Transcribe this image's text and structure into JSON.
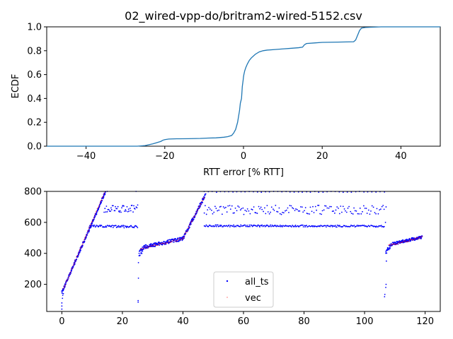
{
  "chart_data": [
    {
      "type": "line",
      "title": "02_wired-vpp-do/britram2-wired-5152.csv",
      "xlabel": "RTT error [% RTT]",
      "ylabel": "ECDF",
      "xlim": [
        -50,
        50
      ],
      "ylim": [
        0,
        1.0
      ],
      "xticks": [
        -40,
        -20,
        0,
        20,
        40
      ],
      "xtick_labels": [
        "−40",
        "−20",
        "0",
        "20",
        "40"
      ],
      "yticks": [
        0.0,
        0.2,
        0.4,
        0.6,
        0.8,
        1.0
      ],
      "ytick_labels": [
        "0.0",
        "0.2",
        "0.4",
        "0.6",
        "0.8",
        "1.0"
      ],
      "grid": false,
      "series": [
        {
          "color": "#1f77b4",
          "x": [
            -50,
            -27,
            -25,
            -23,
            -21,
            -20.5,
            -20,
            -19,
            -17,
            -14,
            -11,
            -9,
            -7,
            -5,
            -4,
            -3,
            -2.5,
            -2,
            -1.5,
            -1,
            -0.8,
            -0.5,
            -0.3,
            -0.1,
            0,
            0.1,
            0.3,
            0.6,
            1,
            1.5,
            2,
            3,
            4,
            5,
            6,
            8,
            10,
            12,
            14,
            15,
            15.5,
            16,
            18,
            20,
            24,
            28,
            28.5,
            29,
            29.5,
            30,
            31,
            35,
            50
          ],
          "y": [
            0,
            0,
            0.005,
            0.02,
            0.04,
            0.05,
            0.055,
            0.06,
            0.062,
            0.063,
            0.065,
            0.068,
            0.07,
            0.075,
            0.08,
            0.09,
            0.11,
            0.14,
            0.2,
            0.3,
            0.36,
            0.4,
            0.5,
            0.55,
            0.58,
            0.6,
            0.63,
            0.66,
            0.69,
            0.72,
            0.74,
            0.77,
            0.79,
            0.8,
            0.805,
            0.81,
            0.815,
            0.82,
            0.825,
            0.83,
            0.85,
            0.86,
            0.865,
            0.87,
            0.872,
            0.875,
            0.89,
            0.93,
            0.97,
            0.99,
            0.995,
            1.0,
            1.0
          ]
        }
      ]
    },
    {
      "type": "scatter",
      "xlim": [
        -5,
        125
      ],
      "ylim": [
        25,
        800
      ],
      "xticks": [
        0,
        20,
        40,
        60,
        80,
        100,
        120
      ],
      "xtick_labels": [
        "0",
        "20",
        "40",
        "60",
        "80",
        "100",
        "120"
      ],
      "yticks": [
        200,
        400,
        600,
        800
      ],
      "ytick_labels": [
        "200",
        "400",
        "600",
        "800"
      ],
      "grid": false,
      "legend": {
        "placement": "lower-center"
      },
      "series": [
        {
          "name": "all_ts",
          "color": "#0000ff",
          "marker": "dot",
          "segments": [
            {
              "x0": 0,
              "x1": 14.5,
              "y0": 150,
              "y1": 800,
              "count": 260,
              "jitter": 10
            },
            {
              "x0": 9,
              "x1": 25,
              "y0": 575,
              "y1": 572,
              "count": 70,
              "jitter": 8
            },
            {
              "x0": 14,
              "x1": 25,
              "y0": 690,
              "y1": 690,
              "count": 45,
              "jitter": 25
            },
            {
              "x0": 25.5,
              "x1": 27,
              "y0": 400,
              "y1": 430,
              "count": 25,
              "jitter": 20
            },
            {
              "x0": 27,
              "x1": 40,
              "y0": 440,
              "y1": 495,
              "count": 170,
              "jitter": 12
            },
            {
              "x0": 40,
              "x1": 47.5,
              "y0": 495,
              "y1": 780,
              "count": 120,
              "jitter": 12
            },
            {
              "x0": 47,
              "x1": 106.5,
              "y0": 578,
              "y1": 575,
              "count": 240,
              "jitter": 6
            },
            {
              "x0": 47,
              "x1": 106.5,
              "y0": 680,
              "y1": 680,
              "count": 150,
              "jitter": 30
            },
            {
              "x0": 47,
              "x1": 106.5,
              "y0": 797,
              "y1": 797,
              "count": 45,
              "jitter": 3
            },
            {
              "x0": 107,
              "x1": 109,
              "y0": 410,
              "y1": 460,
              "count": 25,
              "jitter": 15
            },
            {
              "x0": 109,
              "x1": 119,
              "y0": 460,
              "y1": 505,
              "count": 150,
              "jitter": 10
            }
          ],
          "outliers": [
            [
              0,
              40
            ],
            [
              0,
              60
            ],
            [
              0,
              80
            ],
            [
              0.2,
              110
            ],
            [
              0.3,
              130
            ],
            [
              25.2,
              85
            ],
            [
              25.2,
              95
            ],
            [
              25.3,
              240
            ],
            [
              25.3,
              340
            ],
            [
              106.6,
              120
            ],
            [
              106.7,
              135
            ],
            [
              107,
              180
            ],
            [
              107.1,
              200
            ],
            [
              107.2,
              350
            ],
            [
              106.9,
              600
            ],
            [
              107.1,
              700
            ],
            [
              0.5,
              140
            ],
            [
              15,
              800
            ],
            [
              24.5,
              800
            ]
          ]
        },
        {
          "name": "vec",
          "color": "#ff0000",
          "marker": "pixel",
          "segments": [
            {
              "x0": 0.5,
              "x1": 14,
              "y0": 170,
              "y1": 790,
              "count": 60,
              "jitter": 4
            },
            {
              "x0": 26,
              "x1": 40,
              "y0": 430,
              "y1": 495,
              "count": 40,
              "jitter": 6
            },
            {
              "x0": 40,
              "x1": 47,
              "y0": 495,
              "y1": 760,
              "count": 30,
              "jitter": 6
            },
            {
              "x0": 108,
              "x1": 119,
              "y0": 450,
              "y1": 505,
              "count": 35,
              "jitter": 6
            }
          ],
          "outliers": []
        }
      ]
    }
  ]
}
